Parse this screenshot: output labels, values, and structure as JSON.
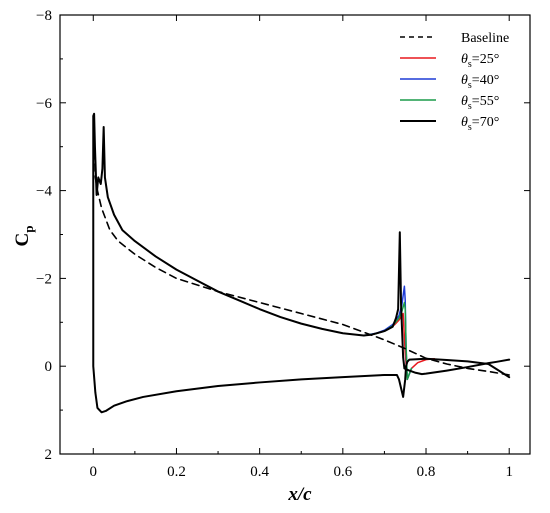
{
  "chart_data": {
    "type": "line",
    "title": "",
    "xlabel": "x/c",
    "ylabel_main": "C",
    "ylabel_sub": "p",
    "xlim": [
      -0.08,
      1.05
    ],
    "ylim": [
      -8,
      2
    ],
    "y_inverted": true,
    "grid": false,
    "legend_position": "top-right",
    "x_ticks": [
      {
        "value": 0,
        "label": "0"
      },
      {
        "value": 0.2,
        "label": "0.2"
      },
      {
        "value": 0.4,
        "label": "0.4"
      },
      {
        "value": 0.6,
        "label": "0.6"
      },
      {
        "value": 0.8,
        "label": "0.8"
      },
      {
        "value": 1.0,
        "label": "1"
      }
    ],
    "y_ticks": [
      {
        "value": -8,
        "label": "−8"
      },
      {
        "value": -6,
        "label": "−6"
      },
      {
        "value": -4,
        "label": "−4"
      },
      {
        "value": -2,
        "label": "−2"
      },
      {
        "value": 0,
        "label": "0"
      },
      {
        "value": 2,
        "label": "2"
      }
    ],
    "series": [
      {
        "name": "Baseline",
        "legend_main": "Baseline",
        "legend_sub": "",
        "legend_tail": "",
        "color": "#000000",
        "dashed": true,
        "width": 1.6,
        "x": [
          0.0,
          0.005,
          0.01,
          0.02,
          0.04,
          0.06,
          0.1,
          0.15,
          0.2,
          0.3,
          0.4,
          0.5,
          0.6,
          0.7,
          0.75,
          0.8,
          0.85,
          0.9,
          0.95,
          1.0
        ],
        "y": [
          -5.7,
          -4.3,
          -4.0,
          -3.6,
          -3.1,
          -2.85,
          -2.55,
          -2.25,
          -2.0,
          -1.7,
          -1.45,
          -1.2,
          -0.95,
          -0.6,
          -0.4,
          -0.18,
          -0.05,
          0.05,
          0.12,
          0.2
        ]
      },
      {
        "name": "θs=25°",
        "legend_main": "θ",
        "legend_sub": "s",
        "legend_tail": "=25°",
        "color": "#e8191e",
        "dashed": false,
        "width": 1.5,
        "x": [
          0.65,
          0.67,
          0.69,
          0.71,
          0.725,
          0.735,
          0.745,
          0.75,
          0.755,
          0.765,
          0.78,
          0.8,
          0.82
        ],
        "y": [
          -0.7,
          -0.72,
          -0.77,
          -0.85,
          -0.95,
          -1.05,
          -1.2,
          -0.3,
          0.3,
          0.05,
          -0.08,
          -0.15,
          -0.17
        ]
      },
      {
        "name": "θs=40°",
        "legend_main": "θ",
        "legend_sub": "s",
        "legend_tail": "=40°",
        "color": "#1f3cd6",
        "dashed": false,
        "width": 1.5,
        "x": [
          0.65,
          0.68,
          0.7,
          0.72,
          0.735,
          0.742,
          0.748,
          0.75,
          0.752,
          0.755,
          0.765
        ],
        "y": [
          -0.7,
          -0.75,
          -0.82,
          -0.95,
          -1.15,
          -1.4,
          -1.82,
          -1.5,
          -0.4,
          0.3,
          0.05
        ]
      },
      {
        "name": "θs=55°",
        "legend_main": "θ",
        "legend_sub": "s",
        "legend_tail": "=55°",
        "color": "#1a9c4a",
        "dashed": false,
        "width": 1.5,
        "x": [
          0.65,
          0.68,
          0.7,
          0.72,
          0.735,
          0.742,
          0.748,
          0.75,
          0.752,
          0.755,
          0.765
        ],
        "y": [
          -0.7,
          -0.74,
          -0.8,
          -0.92,
          -1.1,
          -1.25,
          -1.45,
          -1.3,
          -0.5,
          0.3,
          0.05
        ]
      },
      {
        "name": "θs=70°",
        "legend_main": "θ",
        "legend_sub": "s",
        "legend_tail": "=70°",
        "color": "#000000",
        "dashed": false,
        "width": 2.0,
        "x": [
          1.0,
          0.97,
          0.95,
          0.9,
          0.85,
          0.8,
          0.79,
          0.775,
          0.76,
          0.752,
          0.748,
          0.745,
          0.74,
          0.737,
          0.733,
          0.728,
          0.72,
          0.7,
          0.67,
          0.65,
          0.6,
          0.55,
          0.5,
          0.45,
          0.4,
          0.35,
          0.3,
          0.25,
          0.2,
          0.15,
          0.1,
          0.07,
          0.05,
          0.035,
          0.028,
          0.025,
          0.022,
          0.018,
          0.012,
          0.008,
          0.004,
          0.002,
          0.0,
          0.0,
          0.005,
          0.01,
          0.02,
          0.03,
          0.05,
          0.08,
          0.12,
          0.2,
          0.3,
          0.4,
          0.5,
          0.6,
          0.7,
          0.73,
          0.735,
          0.74,
          0.745,
          0.75,
          0.752,
          0.755,
          0.76,
          0.8,
          0.85,
          0.9,
          0.95,
          1.0
        ],
        "y": [
          -0.15,
          -0.1,
          -0.07,
          0.02,
          0.1,
          0.17,
          0.18,
          0.15,
          0.1,
          0.07,
          0.05,
          -0.2,
          -1.4,
          -3.05,
          -1.3,
          -1.1,
          -0.9,
          -0.8,
          -0.72,
          -0.7,
          -0.75,
          -0.85,
          -0.97,
          -1.12,
          -1.3,
          -1.5,
          -1.7,
          -1.95,
          -2.2,
          -2.5,
          -2.85,
          -3.1,
          -3.45,
          -3.85,
          -4.3,
          -5.45,
          -4.5,
          -4.15,
          -4.3,
          -3.9,
          -5.0,
          -5.75,
          -5.7,
          0.0,
          0.6,
          0.95,
          1.05,
          1.02,
          0.9,
          0.8,
          0.7,
          0.57,
          0.45,
          0.37,
          0.3,
          0.25,
          0.2,
          0.2,
          0.3,
          0.5,
          0.7,
          0.3,
          0.0,
          -0.1,
          -0.15,
          -0.17,
          -0.14,
          -0.11,
          -0.05,
          0.25
        ]
      }
    ]
  }
}
